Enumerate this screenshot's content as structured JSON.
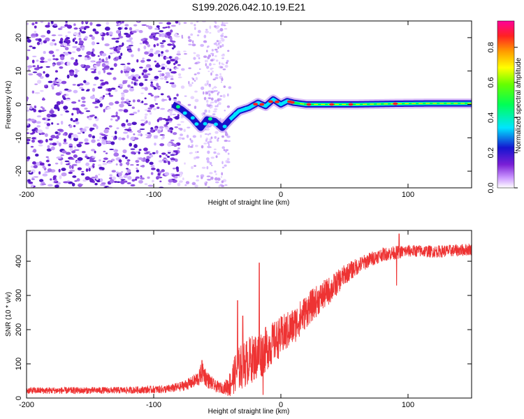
{
  "title": "S199.2026.042.10.19.E21",
  "chart_data": [
    {
      "type": "heatmap",
      "name": "spectrogram",
      "xlabel": "Height of straight line (km)",
      "ylabel": "Frequency (Hz)",
      "xlim": [
        -200,
        150
      ],
      "ylim": [
        -25,
        25
      ],
      "xticks": [
        -200,
        -100,
        0,
        100
      ],
      "xtick_labels": [
        "-200",
        "-100",
        "0",
        "100"
      ],
      "yticks": [
        -20,
        -10,
        0,
        10,
        20
      ],
      "ytick_labels": [
        "-20",
        "-10",
        "0",
        "10",
        "20"
      ],
      "colorbar": {
        "label": "Normalized spectral amplitude",
        "range": [
          0,
          0.95
        ],
        "ticks": [
          0.0,
          0.2,
          0.4,
          0.6,
          0.8
        ],
        "tick_labels": [
          "0.0",
          "0.2",
          "0.4",
          "0.6",
          "0.8"
        ],
        "colors": [
          "#ffffff",
          "#cc99ff",
          "#7a1fd6",
          "#1515d0",
          "#00e5ff",
          "#00ff55",
          "#66ff00",
          "#ffff00",
          "#ff9900",
          "#ff2222",
          "#ff0099"
        ]
      },
      "features": {
        "noise_region_km": [
          -200,
          -80
        ],
        "sparse_region_km": [
          -60,
          -43
        ],
        "ridge_start_km": -85,
        "ridge_path": [
          [
            -85,
            0
          ],
          [
            -78,
            -1.5
          ],
          [
            -70,
            -4
          ],
          [
            -63,
            -7
          ],
          [
            -58,
            -4.5
          ],
          [
            -52,
            -5
          ],
          [
            -46,
            -7
          ],
          [
            -40,
            -4.5
          ],
          [
            -33,
            -2
          ],
          [
            -25,
            -1
          ],
          [
            -18,
            0.5
          ],
          [
            -12,
            -0.5
          ],
          [
            -6,
            1.5
          ],
          [
            0,
            0
          ],
          [
            5,
            1
          ],
          [
            10,
            0.5
          ],
          [
            20,
            0
          ],
          [
            60,
            0
          ],
          [
            90,
            0.2
          ],
          [
            120,
            0.3
          ],
          [
            150,
            0.3
          ]
        ],
        "ridge_peak_amplitude": 0.85
      }
    },
    {
      "type": "line",
      "name": "snr",
      "xlabel": "Height of straight line (km)",
      "ylabel": "SNR (10 * v/v)",
      "xlim": [
        -200,
        150
      ],
      "ylim": [
        0,
        490
      ],
      "xticks": [
        -200,
        -100,
        0,
        100
      ],
      "xtick_labels": [
        "-200",
        "-100",
        "0",
        "100"
      ],
      "yticks": [
        0,
        100,
        200,
        300,
        400
      ],
      "ytick_labels": [
        "0",
        "100",
        "200",
        "300",
        "400"
      ],
      "color": "#ee3333",
      "x": [
        -200,
        -160,
        -120,
        -90,
        -80,
        -70,
        -64,
        -62,
        -58,
        -52,
        -45,
        -40,
        -35,
        -30,
        -25,
        -20,
        -15,
        -10,
        -5,
        0,
        10,
        20,
        30,
        40,
        50,
        60,
        70,
        80,
        90,
        100,
        110,
        120,
        130,
        140,
        150
      ],
      "values": [
        22,
        22,
        23,
        26,
        32,
        45,
        60,
        80,
        55,
        35,
        28,
        40,
        80,
        95,
        110,
        120,
        130,
        150,
        165,
        180,
        210,
        255,
        290,
        320,
        360,
        385,
        405,
        420,
        425,
        430,
        430,
        428,
        430,
        432,
        435
      ],
      "envelope_halfwidth": [
        10,
        10,
        10,
        12,
        14,
        18,
        25,
        35,
        25,
        18,
        15,
        40,
        60,
        70,
        70,
        70,
        70,
        65,
        60,
        60,
        55,
        50,
        45,
        40,
        30,
        25,
        22,
        20,
        20,
        18,
        18,
        18,
        18,
        18,
        18
      ],
      "spikes": [
        [
          -62,
          110
        ],
        [
          -34,
          285
        ],
        [
          -30,
          240
        ],
        [
          -17,
          395
        ],
        [
          -14,
          10
        ],
        [
          93,
          480
        ],
        [
          91,
          330
        ]
      ]
    }
  ]
}
